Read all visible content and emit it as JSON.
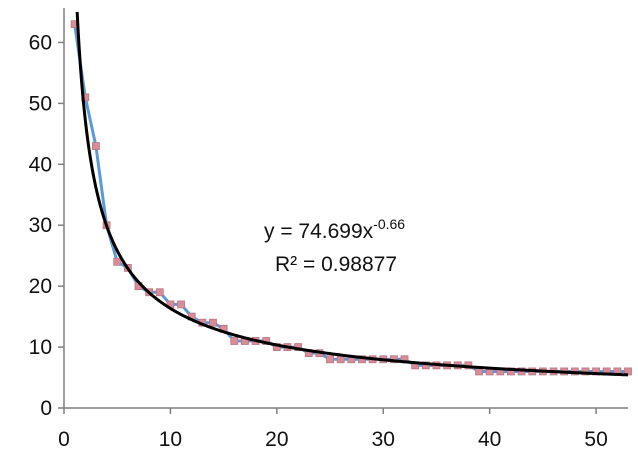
{
  "chart_data": {
    "type": "line",
    "title": "",
    "xlabel": "",
    "ylabel": "",
    "xlim": [
      0,
      53
    ],
    "ylim": [
      0,
      65
    ],
    "grid": false,
    "legend": "none",
    "x_ticks": [
      "0",
      "10",
      "20",
      "30",
      "40",
      "50"
    ],
    "y_ticks": [
      "0",
      "10",
      "20",
      "30",
      "40",
      "50",
      "60"
    ],
    "x_tick_values": [
      0,
      10,
      20,
      30,
      40,
      50
    ],
    "y_tick_values": [
      0,
      10,
      20,
      30,
      40,
      50,
      60
    ],
    "series": [
      {
        "color": "#5B9BD5",
        "marker_color": "#D98C98",
        "x": [
          1,
          2,
          3,
          4,
          5,
          6,
          7,
          8,
          9,
          10,
          11,
          12,
          13,
          14,
          15,
          16,
          17,
          18,
          19,
          20,
          21,
          22,
          23,
          24,
          25,
          26,
          27,
          28,
          29,
          30,
          31,
          32,
          33,
          34,
          35,
          36,
          37,
          38,
          39,
          40,
          41,
          42,
          43,
          44,
          45,
          46,
          47,
          48,
          49,
          50,
          51,
          52,
          53
        ],
        "values": [
          63,
          51,
          43,
          30,
          24,
          23,
          20,
          19,
          19,
          17,
          17,
          15,
          14,
          14,
          13,
          11,
          11,
          11,
          11,
          10,
          10,
          10,
          9,
          9,
          8,
          8,
          8,
          8,
          8,
          8,
          8,
          8,
          7,
          7,
          7,
          7,
          7,
          7,
          6,
          6,
          6,
          6,
          6,
          6,
          6,
          6,
          6,
          6,
          6,
          6,
          6,
          6,
          6
        ]
      }
    ],
    "trendline": {
      "type": "power",
      "color": "#000000",
      "coefficient": 74.699,
      "exponent": -0.66,
      "r_squared": 0.98877
    },
    "annotation": {
      "equation_prefix": "y = 74.699x",
      "equation_exponent": "-0.66",
      "r2_label": "R² = 0.98877"
    }
  }
}
